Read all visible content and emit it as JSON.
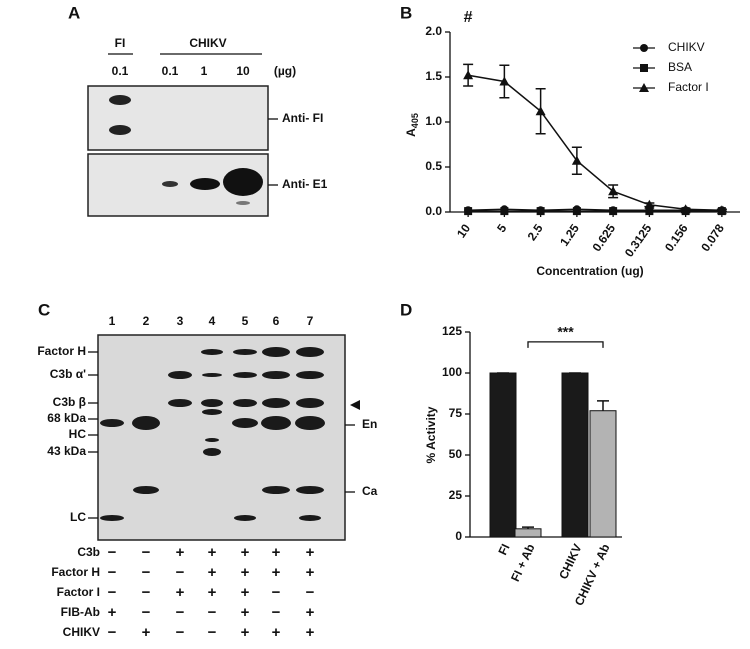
{
  "panel_a": {
    "label": "A",
    "groups": [
      "FI",
      "CHIKV"
    ],
    "amounts": [
      "0.1",
      "0.1",
      "1",
      "10"
    ],
    "unit": "(µg)",
    "blots": [
      "Anti- FI",
      "Anti- E1"
    ]
  },
  "chart_data": [
    {
      "type": "line",
      "panel_label": "B",
      "annotation": "#",
      "categories": [
        "10",
        "5",
        "2.5",
        "1.25",
        "0.625",
        "0.3125",
        "0.156",
        "0.078"
      ],
      "series": [
        {
          "name": "CHIKV",
          "marker": "circle",
          "color": "#111111",
          "values": [
            0.02,
            0.03,
            0.02,
            0.03,
            0.02,
            0.02,
            0.02,
            0.02
          ]
        },
        {
          "name": "BSA",
          "marker": "square",
          "color": "#111111",
          "values": [
            0.01,
            0.01,
            0.01,
            0.01,
            0.01,
            0.01,
            0.01,
            0.01
          ]
        },
        {
          "name": "Factor I",
          "marker": "triangle",
          "color": "#111111",
          "values": [
            1.52,
            1.45,
            1.12,
            0.57,
            0.23,
            0.08,
            0.03,
            0.02
          ],
          "errors": [
            0.12,
            0.18,
            0.25,
            0.15,
            0.07,
            0.02,
            0.01,
            0.01
          ]
        }
      ],
      "ylim": [
        0,
        2.0
      ],
      "yticks": [
        {
          "value": 0,
          "label": "0.0"
        },
        {
          "value": 0.5,
          "label": "0.5"
        },
        {
          "value": 1.0,
          "label": "1.0"
        },
        {
          "value": 1.5,
          "label": "1.5"
        },
        {
          "value": 2.0,
          "label": "2.0"
        }
      ],
      "y_label": "A",
      "y_label_sub": "405",
      "x_label": "Concentration (ug)"
    },
    {
      "type": "bar",
      "panel_label": "D",
      "significance": "***",
      "categories": [
        "FI",
        "FI + Ab",
        "CHIKV",
        "CHIKV + Ab"
      ],
      "values": [
        100,
        5,
        100,
        77
      ],
      "errors": [
        0,
        1,
        0,
        6
      ],
      "colors": [
        "#1a1a1a",
        "#b3b3b3",
        "#1a1a1a",
        "#b3b3b3"
      ],
      "ylim": [
        0,
        125
      ],
      "yticks": [
        0,
        25,
        50,
        75,
        100,
        125
      ],
      "y_label": "% Activity"
    }
  ],
  "panel_c": {
    "label": "C",
    "lanes": [
      "1",
      "2",
      "3",
      "4",
      "5",
      "6",
      "7"
    ],
    "left_markers": [
      "Factor H",
      "C3b α'",
      "C3b β",
      "68 kDa",
      "HC",
      "43 kDa",
      "LC"
    ],
    "right_markers": [
      "En",
      "Ca"
    ],
    "conditions": [
      {
        "name": "C3b",
        "signs": [
          "−",
          "−",
          "+",
          "+",
          "+",
          "+",
          "+"
        ]
      },
      {
        "name": "Factor H",
        "signs": [
          "−",
          "−",
          "−",
          "+",
          "+",
          "+",
          "+"
        ]
      },
      {
        "name": "Factor I",
        "signs": [
          "−",
          "−",
          "+",
          "+",
          "+",
          "−",
          "−"
        ]
      },
      {
        "name": "FIB-Ab",
        "signs": [
          "+",
          "−",
          "−",
          "−",
          "+",
          "−",
          "+"
        ]
      },
      {
        "name": "CHIKV",
        "signs": [
          "−",
          "+",
          "−",
          "−",
          "+",
          "+",
          "+"
        ]
      }
    ]
  }
}
